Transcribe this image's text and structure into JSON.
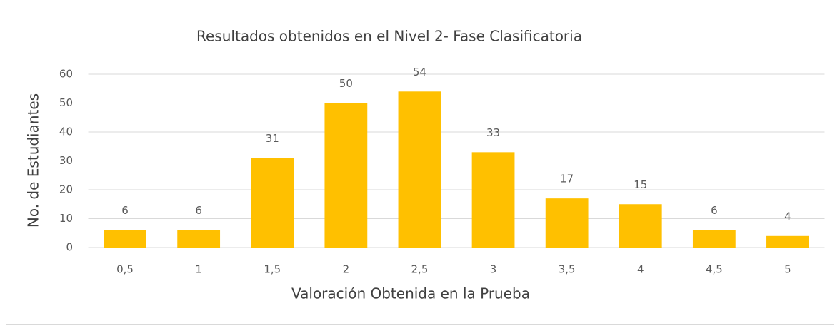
{
  "chart_data": {
    "type": "bar",
    "title": "Resultados obtenidos en el Nivel 2- Fase Clasificatoria",
    "x_label": "Valoración Obtenida en la Prueba",
    "y_label": "No. de Estudiantes",
    "categories": [
      "0,5",
      "1",
      "1,5",
      "2",
      "2,5",
      "3",
      "3,5",
      "4",
      "4,5",
      "5"
    ],
    "values": [
      6,
      6,
      31,
      50,
      54,
      33,
      17,
      15,
      6,
      4
    ],
    "color": "#ffc000",
    "ylim": [
      0,
      60
    ],
    "yticks": [
      0,
      10,
      20,
      30,
      40,
      50,
      60
    ],
    "grid": true
  }
}
